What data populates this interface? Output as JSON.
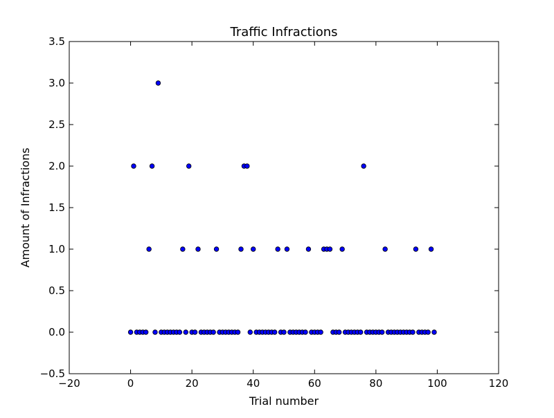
{
  "chart_data": {
    "type": "scatter",
    "title": "Traffic Infractions",
    "xlabel": "Trial number",
    "ylabel": "Amount of Infractions",
    "xlim": [
      -20,
      120
    ],
    "ylim": [
      -0.5,
      3.5
    ],
    "xticks": [
      -20,
      0,
      20,
      40,
      60,
      80,
      100,
      120
    ],
    "yticks": [
      -0.5,
      0.0,
      0.5,
      1.0,
      1.5,
      2.0,
      2.5,
      3.0,
      3.5
    ],
    "xtick_labels": [
      "−20",
      "0",
      "20",
      "40",
      "60",
      "80",
      "100",
      "120"
    ],
    "ytick_labels": [
      "−0.5",
      "0.0",
      "0.5",
      "1.0",
      "1.5",
      "2.0",
      "2.5",
      "3.0",
      "3.5"
    ],
    "grid": false,
    "marker_color": "#0000ff",
    "marker_edge_color": "#000000",
    "x": [
      0,
      1,
      2,
      3,
      4,
      5,
      6,
      7,
      8,
      9,
      10,
      11,
      12,
      13,
      14,
      15,
      16,
      17,
      18,
      19,
      20,
      21,
      22,
      23,
      24,
      25,
      26,
      27,
      28,
      29,
      30,
      31,
      32,
      33,
      34,
      35,
      36,
      37,
      38,
      39,
      40,
      41,
      42,
      43,
      44,
      45,
      46,
      47,
      48,
      49,
      50,
      51,
      52,
      53,
      54,
      55,
      56,
      57,
      58,
      59,
      60,
      61,
      62,
      63,
      64,
      65,
      66,
      67,
      68,
      69,
      70,
      71,
      72,
      73,
      74,
      75,
      76,
      77,
      78,
      79,
      80,
      81,
      82,
      83,
      84,
      85,
      86,
      87,
      88,
      89,
      90,
      91,
      92,
      93,
      94,
      95,
      96,
      97,
      98,
      99
    ],
    "y": [
      0,
      2,
      0,
      0,
      0,
      0,
      1,
      2,
      0,
      3,
      0,
      0,
      0,
      0,
      0,
      0,
      0,
      1,
      0,
      2,
      0,
      0,
      1,
      0,
      0,
      0,
      0,
      0,
      1,
      0,
      0,
      0,
      0,
      0,
      0,
      0,
      1,
      2,
      2,
      0,
      1,
      0,
      0,
      0,
      0,
      0,
      0,
      0,
      1,
      0,
      0,
      1,
      0,
      0,
      0,
      0,
      0,
      0,
      1,
      0,
      0,
      0,
      0,
      1,
      1,
      1,
      0,
      0,
      0,
      1,
      0,
      0,
      0,
      0,
      0,
      0,
      2,
      0,
      0,
      0,
      0,
      0,
      0,
      1,
      0,
      0,
      0,
      0,
      0,
      0,
      0,
      0,
      0,
      1,
      0,
      0,
      0,
      0,
      1,
      0
    ]
  }
}
